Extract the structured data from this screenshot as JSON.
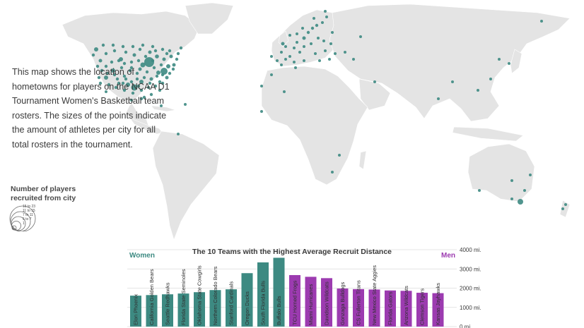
{
  "intro_text": "This map shows the location of hometowns for players on the NCAA D1 Tournament Women's Basketball team rosters. The sizes of the points indicate the amount of athletes per city for all total rosters in the tournament.",
  "legend": {
    "title": "Number of players recruited from city",
    "classes": [
      "15 to 23",
      "11 to 15",
      "7 to 11",
      "5 to 7",
      "1"
    ]
  },
  "colors": {
    "women": "#3d8a82",
    "men": "#9c3bb0",
    "land": "#e4e4e4",
    "borders": "#ffffff"
  },
  "chart_data": {
    "type": "bar",
    "title": "The 10 Teams with the Highest Average Recruit Distance",
    "group_labels": {
      "women": "Women",
      "men": "Men"
    },
    "y_ticks": [
      "4000 mi.",
      "3000 mi.",
      "2000 mi.",
      "1000 mi.",
      "0 mi."
    ],
    "ylim": [
      0,
      4000
    ],
    "series": [
      {
        "name": "Women",
        "categories": [
          "Elon Phoenix",
          "California Golden Bears",
          "Seattle Redhawks",
          "Florida State Seminoles",
          "Oklahoma State Cowgirls",
          "Northern Colorado Bears",
          "Stanford Cardinals",
          "Oregon Ducks",
          "South Florida Bulls",
          "Buffalo Bulls"
        ],
        "values": [
          1610,
          1640,
          1680,
          1720,
          1790,
          1900,
          1940,
          2780,
          3340,
          3580
        ]
      },
      {
        "name": "Men",
        "categories": [
          "TCU Horned Frogs",
          "Miami Hurricanes",
          "Davidson Wildcats",
          "Gonzaga Bulldogs",
          "CS Fullerton Titans",
          "New Mexico State Aggies",
          "Florida Gators",
          "Arizona Wildcats",
          "Clemson Tigers",
          "Kansas Jayhawks"
        ],
        "values": [
          2680,
          2590,
          2520,
          1980,
          1950,
          1930,
          1880,
          1860,
          1760,
          1740
        ]
      }
    ]
  }
}
